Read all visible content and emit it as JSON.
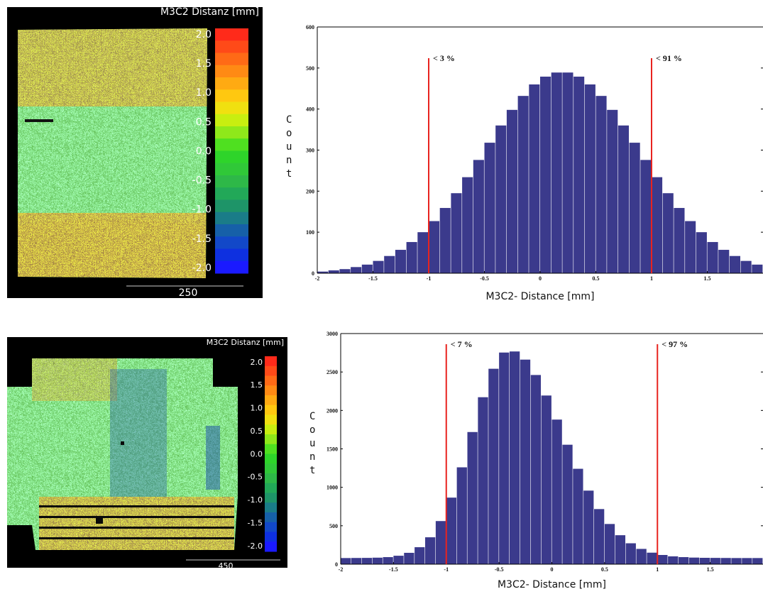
{
  "panels": [
    {
      "title": "M3C2 Distanz [mm]",
      "colorbar_ticks": [
        "2.0",
        "1.5",
        "1.0",
        "0.5",
        "0.0",
        "-0.5",
        "-1.0",
        "-1.5",
        "-2.0"
      ],
      "scale_label": "250"
    },
    {
      "title": "M3C2 Distanz [mm]",
      "colorbar_ticks": [
        "2.0",
        "1.5",
        "1.0",
        "0.5",
        "0.0",
        "-0.5",
        "-1.0",
        "-1.5",
        "-2.0"
      ],
      "scale_label": "450"
    }
  ],
  "chart_data": [
    {
      "type": "histogram",
      "xlabel": "M3C2- Distance [mm]",
      "ylabel": "Count",
      "color": "#3b3a8c",
      "bins": [
        -2,
        -1.9,
        -1.8,
        -1.7,
        -1.6,
        -1.5,
        -1.4,
        -1.3,
        -1.2,
        -1.1,
        -1,
        -0.9,
        -0.8,
        -0.7,
        -0.6,
        -0.5,
        -0.4,
        -0.3,
        -0.2,
        -0.1,
        0,
        0.1,
        0.2,
        0.3,
        0.4,
        0.5,
        0.6,
        0.7,
        0.8,
        0.9,
        1,
        1.1,
        1.2,
        1.3,
        1.4,
        1.5,
        1.6,
        1.7,
        1.8,
        1.9,
        2
      ],
      "values": [
        4,
        7,
        10,
        15,
        21,
        30,
        42,
        57,
        76,
        100,
        127,
        159,
        195,
        234,
        276,
        318,
        360,
        398,
        432,
        460,
        479,
        489,
        489,
        479,
        460,
        432,
        398,
        360,
        318,
        276,
        234,
        195,
        159,
        127,
        100,
        76,
        57,
        42,
        30,
        21
      ],
      "xlim": [
        -2,
        2
      ],
      "ylim": [
        0,
        600
      ],
      "xticks": [
        -2,
        -1.5,
        -1,
        -0.5,
        0,
        0.5,
        1,
        1.5
      ],
      "yticks": [
        0,
        100,
        200,
        300,
        400,
        500,
        600
      ],
      "markers": [
        {
          "x": -1,
          "label": "< 3 %",
          "color": "#e8231f"
        },
        {
          "x": 1,
          "label": "< 91 %",
          "color": "#e8231f"
        }
      ]
    },
    {
      "type": "histogram",
      "xlabel": "M3C2- Distance [mm]",
      "ylabel": "Count",
      "color": "#3b3a8c",
      "bins": [
        -2,
        -1.9,
        -1.8,
        -1.7,
        -1.6,
        -1.5,
        -1.4,
        -1.3,
        -1.2,
        -1.1,
        -1,
        -0.9,
        -0.8,
        -0.7,
        -0.6,
        -0.5,
        -0.4,
        -0.3,
        -0.2,
        -0.1,
        0,
        0.1,
        0.2,
        0.3,
        0.4,
        0.5,
        0.6,
        0.7,
        0.8,
        0.9,
        1,
        1.1,
        1.2,
        1.3,
        1.4,
        1.5,
        1.6,
        1.7,
        1.8,
        1.9,
        2
      ],
      "values": [
        80,
        81,
        82,
        85,
        92,
        110,
        148,
        221,
        350,
        561,
        866,
        1260,
        1719,
        2172,
        2542,
        2753,
        2767,
        2661,
        2461,
        2194,
        1881,
        1554,
        1241,
        957,
        717,
        523,
        377,
        272,
        199,
        150,
        120,
        102,
        92,
        86,
        83,
        82,
        81,
        80,
        80,
        80
      ],
      "xlim": [
        -2,
        2
      ],
      "ylim": [
        0,
        3000
      ],
      "xticks": [
        -2,
        -1.5,
        -1,
        -0.5,
        0,
        0.5,
        1,
        1.5
      ],
      "yticks": [
        0,
        500,
        1000,
        1500,
        2000,
        2500,
        3000
      ],
      "markers": [
        {
          "x": -1,
          "label": "< 7 %",
          "color": "#e8231f"
        },
        {
          "x": 1,
          "label": "< 97 %",
          "color": "#e8231f"
        }
      ]
    }
  ]
}
